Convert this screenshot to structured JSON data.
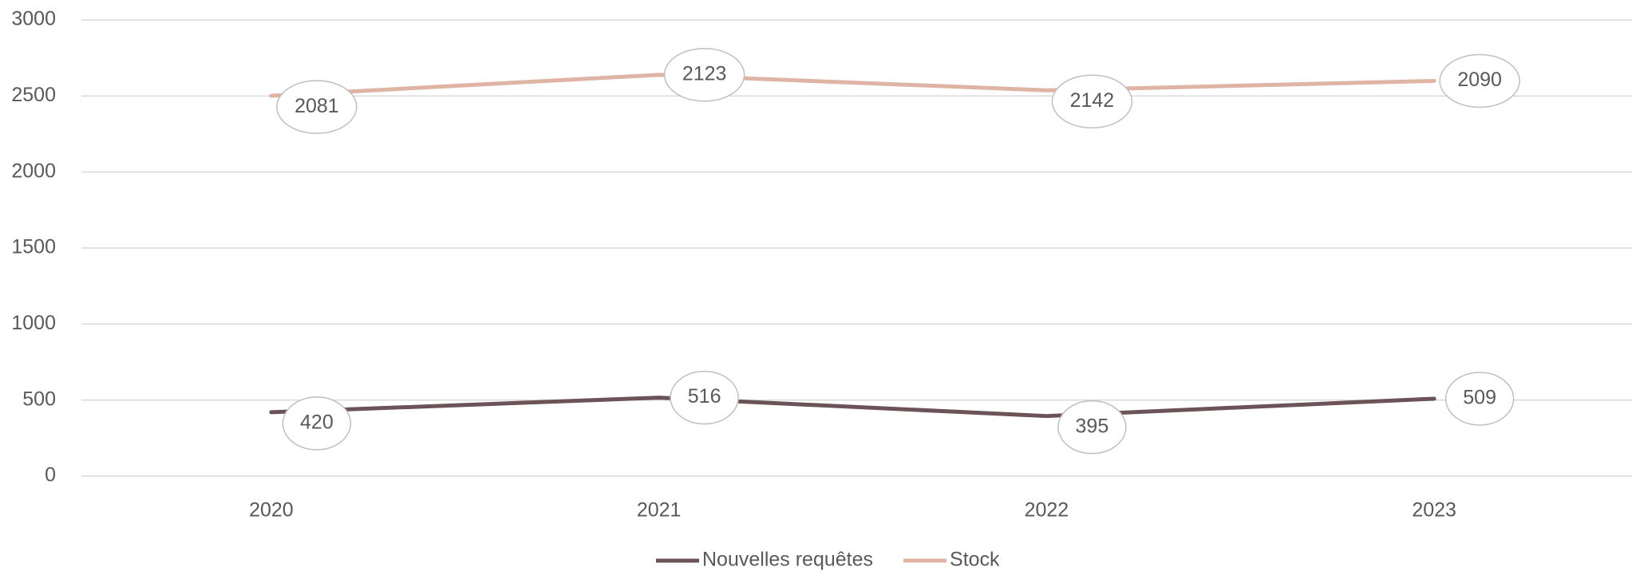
{
  "chart_data": {
    "type": "line",
    "stacked": true,
    "x": [
      "2020",
      "2021",
      "2022",
      "2023"
    ],
    "series": [
      {
        "name": "Nouvelles requêtes",
        "color": "#6b5358",
        "values": [
          420,
          516,
          395,
          509
        ]
      },
      {
        "name": "Stock",
        "color": "#e0b4a4",
        "values": [
          2081,
          2123,
          2142,
          2090
        ]
      }
    ],
    "ylim": [
      0,
      3000
    ],
    "yticks": [
      0,
      500,
      1000,
      1500,
      2000,
      2500,
      3000
    ],
    "grid": true,
    "legend": "bottom"
  }
}
